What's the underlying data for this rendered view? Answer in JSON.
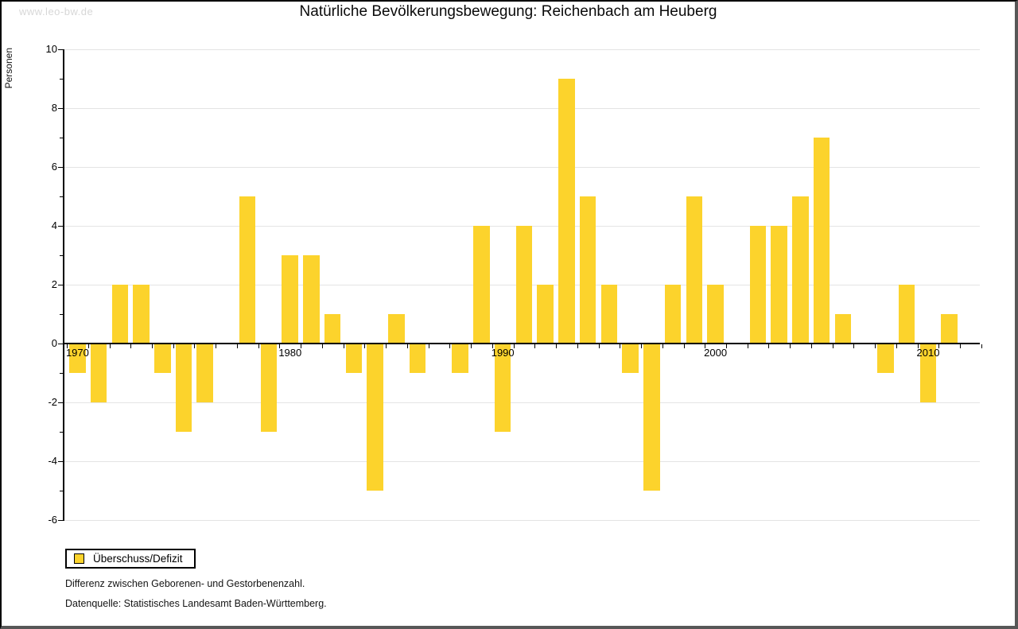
{
  "watermark": "www.leo-bw.de",
  "chart_data": {
    "type": "bar",
    "title": "Natürliche Bevölkerungsbewegung: Reichenbach am Heuberg",
    "ylabel": "Personen",
    "xlabel": "",
    "series_name": "Überschuss/Defizit",
    "x": [
      1970,
      1971,
      1972,
      1973,
      1974,
      1975,
      1976,
      1977,
      1978,
      1979,
      1980,
      1981,
      1982,
      1983,
      1984,
      1985,
      1986,
      1987,
      1988,
      1989,
      1990,
      1991,
      1992,
      1993,
      1994,
      1995,
      1996,
      1997,
      1998,
      1999,
      2000,
      2001,
      2002,
      2003,
      2004,
      2005,
      2006,
      2007,
      2008,
      2009,
      2010,
      2011
    ],
    "values": [
      -1,
      -2,
      2,
      2,
      -1,
      -3,
      -2,
      0,
      5,
      -3,
      3,
      3,
      1,
      -1,
      -5,
      1,
      -1,
      0,
      -1,
      4,
      -3,
      4,
      2,
      9,
      5,
      2,
      -1,
      -5,
      2,
      5,
      2,
      0,
      4,
      4,
      5,
      7,
      1,
      0,
      -1,
      2,
      -2,
      1
    ],
    "ylim": [
      -6,
      10
    ],
    "ytick_step": 2,
    "ytick_labels": [
      "10",
      "8",
      "6",
      "4",
      "2",
      "0",
      "-2",
      "-4",
      "-6"
    ],
    "xtick_labels": [
      "1970",
      "1980",
      "1990",
      "2000",
      "2010"
    ],
    "grid": true,
    "legend_position": "bottom-left",
    "bar_color": "#fcd32c",
    "grid_color": "#e4e4e4"
  },
  "legend": {
    "label": "Überschuss/Defizit"
  },
  "notes": [
    "Differenz zwischen Geborenen- und Gestorbenenzahl.",
    "Datenquelle: Statistisches Landesamt Baden-Württemberg."
  ]
}
